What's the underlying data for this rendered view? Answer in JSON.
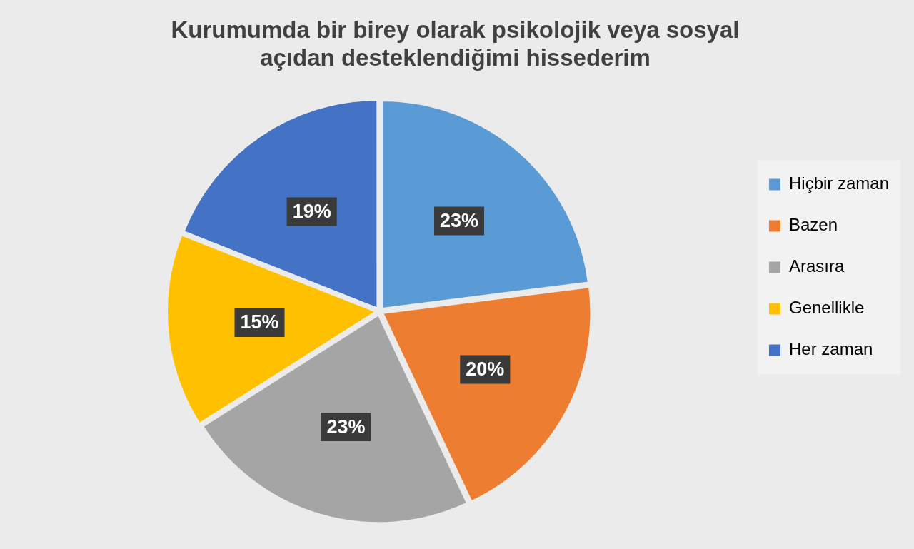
{
  "chart_data": {
    "type": "pie",
    "title": "Kurumumda bir birey olarak psikolojik veya sosyal açıdan desteklendiğimi hissederim",
    "categories": [
      "Hiçbir zaman",
      "Bazen",
      "Arasıra",
      "Genellikle",
      "Her zaman"
    ],
    "values": [
      23,
      20,
      23,
      15,
      19
    ],
    "value_labels": [
      "23%",
      "20%",
      "23%",
      "15%",
      "19%"
    ],
    "colors": [
      "#5b9bd5",
      "#ed7d31",
      "#a5a5a5",
      "#ffc000",
      "#4472c4"
    ],
    "legend": "right"
  }
}
